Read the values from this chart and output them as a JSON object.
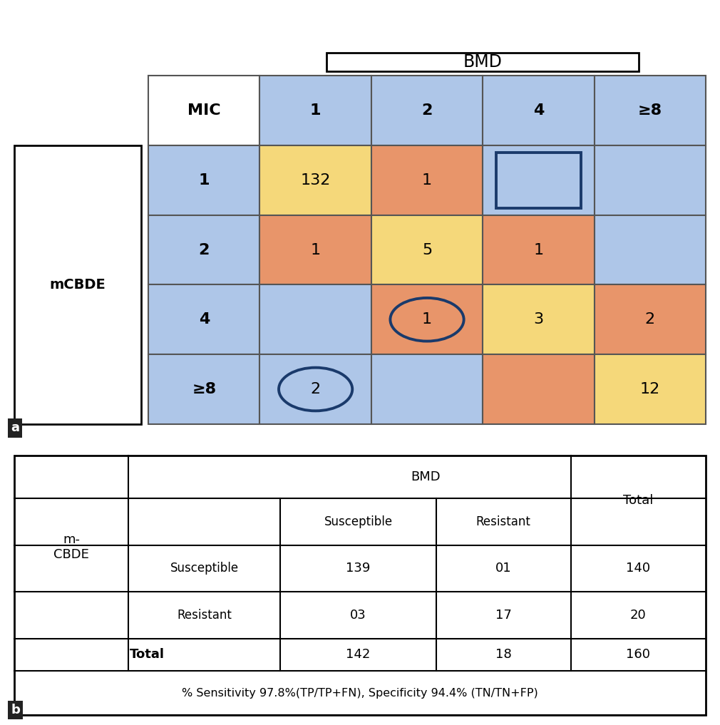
{
  "bmd_title": "BMD",
  "mcbde_label": "mCBDE",
  "mic_label": "MIC",
  "col_headers": [
    "1",
    "2",
    "4",
    "≥8"
  ],
  "row_headers": [
    "1",
    "2",
    "4",
    "≥8"
  ],
  "grid_values": [
    [
      "132",
      "1",
      "",
      ""
    ],
    [
      "1",
      "5",
      "1",
      ""
    ],
    [
      "",
      "1",
      "3",
      "2"
    ],
    [
      "2",
      "",
      "",
      "12"
    ]
  ],
  "cell_colors": [
    [
      "#f5d87a",
      "#e8956a",
      "#aec6e8",
      "#aec6e8"
    ],
    [
      "#e8956a",
      "#f5d87a",
      "#e8956a",
      "#aec6e8"
    ],
    [
      "#aec6e8",
      "#e8956a",
      "#f5d87a",
      "#e8956a"
    ],
    [
      "#aec6e8",
      "#aec6e8",
      "#e8956a",
      "#f5d87a"
    ]
  ],
  "header_row_color": "#aec6e8",
  "header_col_color": "#aec6e8",
  "header_mic_color": "#ffffff",
  "circle_color": "#1a3a6b",
  "circle_cells": [
    [
      3,
      0
    ],
    [
      2,
      1
    ]
  ],
  "square_cells": [
    [
      1,
      2
    ]
  ],
  "bg_color": "#ffffff",
  "panel_a_label": "a",
  "panel_b_label": "b",
  "table_b": {
    "bmd_label": "BMD",
    "total_label": "Total",
    "col_susceptible": "Susceptible",
    "col_resistant": "Resistant",
    "row_susceptible": "Susceptible",
    "row_resistant": "Resistant",
    "mcbde_row_label": "m-\nCBDE",
    "total_row_label": "Total",
    "data": {
      "susc_susc": "139",
      "susc_resist": "01",
      "susc_total": "140",
      "resist_susc": "03",
      "resist_resist": "17",
      "resist_total": "20",
      "total_susc": "142",
      "total_resist": "18",
      "total_total": "160"
    },
    "footnote": "% Sensitivity 97.8%(TP/TP+FN), Specificity 94.4% (TN/TN+FP)"
  }
}
